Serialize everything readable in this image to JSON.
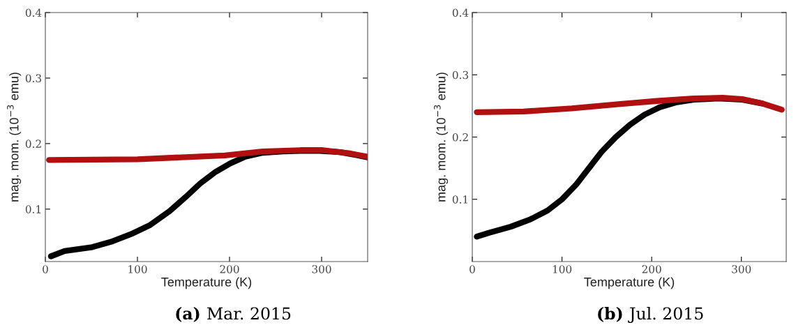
{
  "chart_data": [
    {
      "type": "line",
      "title": "(a) Mar. 2015",
      "xlabel": "Temperature (K)",
      "ylabel": "mag. mom. (10$^{−3}$ emu)",
      "xlim": [
        0,
        350
      ],
      "ylim": [
        0.02,
        0.4
      ],
      "xticks": [
        0,
        100,
        200,
        300
      ],
      "yticks": [
        0.1,
        0.2,
        0.3,
        0.4
      ],
      "grid": false,
      "legend": false,
      "series": [
        {
          "color": "#000000",
          "x": [
            6,
            21,
            51,
            73,
            95,
            114,
            135,
            152,
            168,
            185,
            201,
            217,
            236,
            258,
            277,
            298,
            320,
            336,
            350
          ],
          "values": [
            0.028,
            0.036,
            0.042,
            0.051,
            0.063,
            0.076,
            0.097,
            0.118,
            0.139,
            0.157,
            0.17,
            0.18,
            0.186,
            0.188,
            0.189,
            0.189,
            0.187,
            0.183,
            0.179
          ]
        },
        {
          "color": "#b01010",
          "x": [
            4,
            100,
            195,
            236,
            277,
            301,
            331,
            350
          ],
          "values": [
            0.175,
            0.176,
            0.182,
            0.188,
            0.19,
            0.19,
            0.185,
            0.18
          ]
        }
      ]
    },
    {
      "type": "line",
      "title": "(b) Jul. 2015",
      "xlabel": "Temperature (K)",
      "ylabel": "mag. mom. (10$^{−3}$ emu)",
      "xlim": [
        0,
        350
      ],
      "ylim": [
        0.0,
        0.4
      ],
      "xticks": [
        0,
        100,
        200,
        300
      ],
      "yticks": [
        0.1,
        0.2,
        0.3,
        0.4
      ],
      "grid": false,
      "legend": false,
      "series": [
        {
          "color": "#000000",
          "x": [
            5,
            18,
            43,
            65,
            84,
            100,
            116,
            130,
            144,
            160,
            176,
            192,
            209,
            228,
            247,
            274,
            301,
            323
          ],
          "values": [
            0.04,
            0.046,
            0.056,
            0.068,
            0.082,
            0.1,
            0.124,
            0.15,
            0.176,
            0.2,
            0.22,
            0.236,
            0.248,
            0.256,
            0.26,
            0.262,
            0.26,
            0.254
          ]
        },
        {
          "color": "#b01010",
          "x": [
            5,
            57,
            111,
            165,
            206,
            247,
            279,
            301,
            323,
            345
          ],
          "values": [
            0.24,
            0.241,
            0.246,
            0.253,
            0.258,
            0.262,
            0.263,
            0.261,
            0.254,
            0.244
          ]
        }
      ]
    }
  ]
}
